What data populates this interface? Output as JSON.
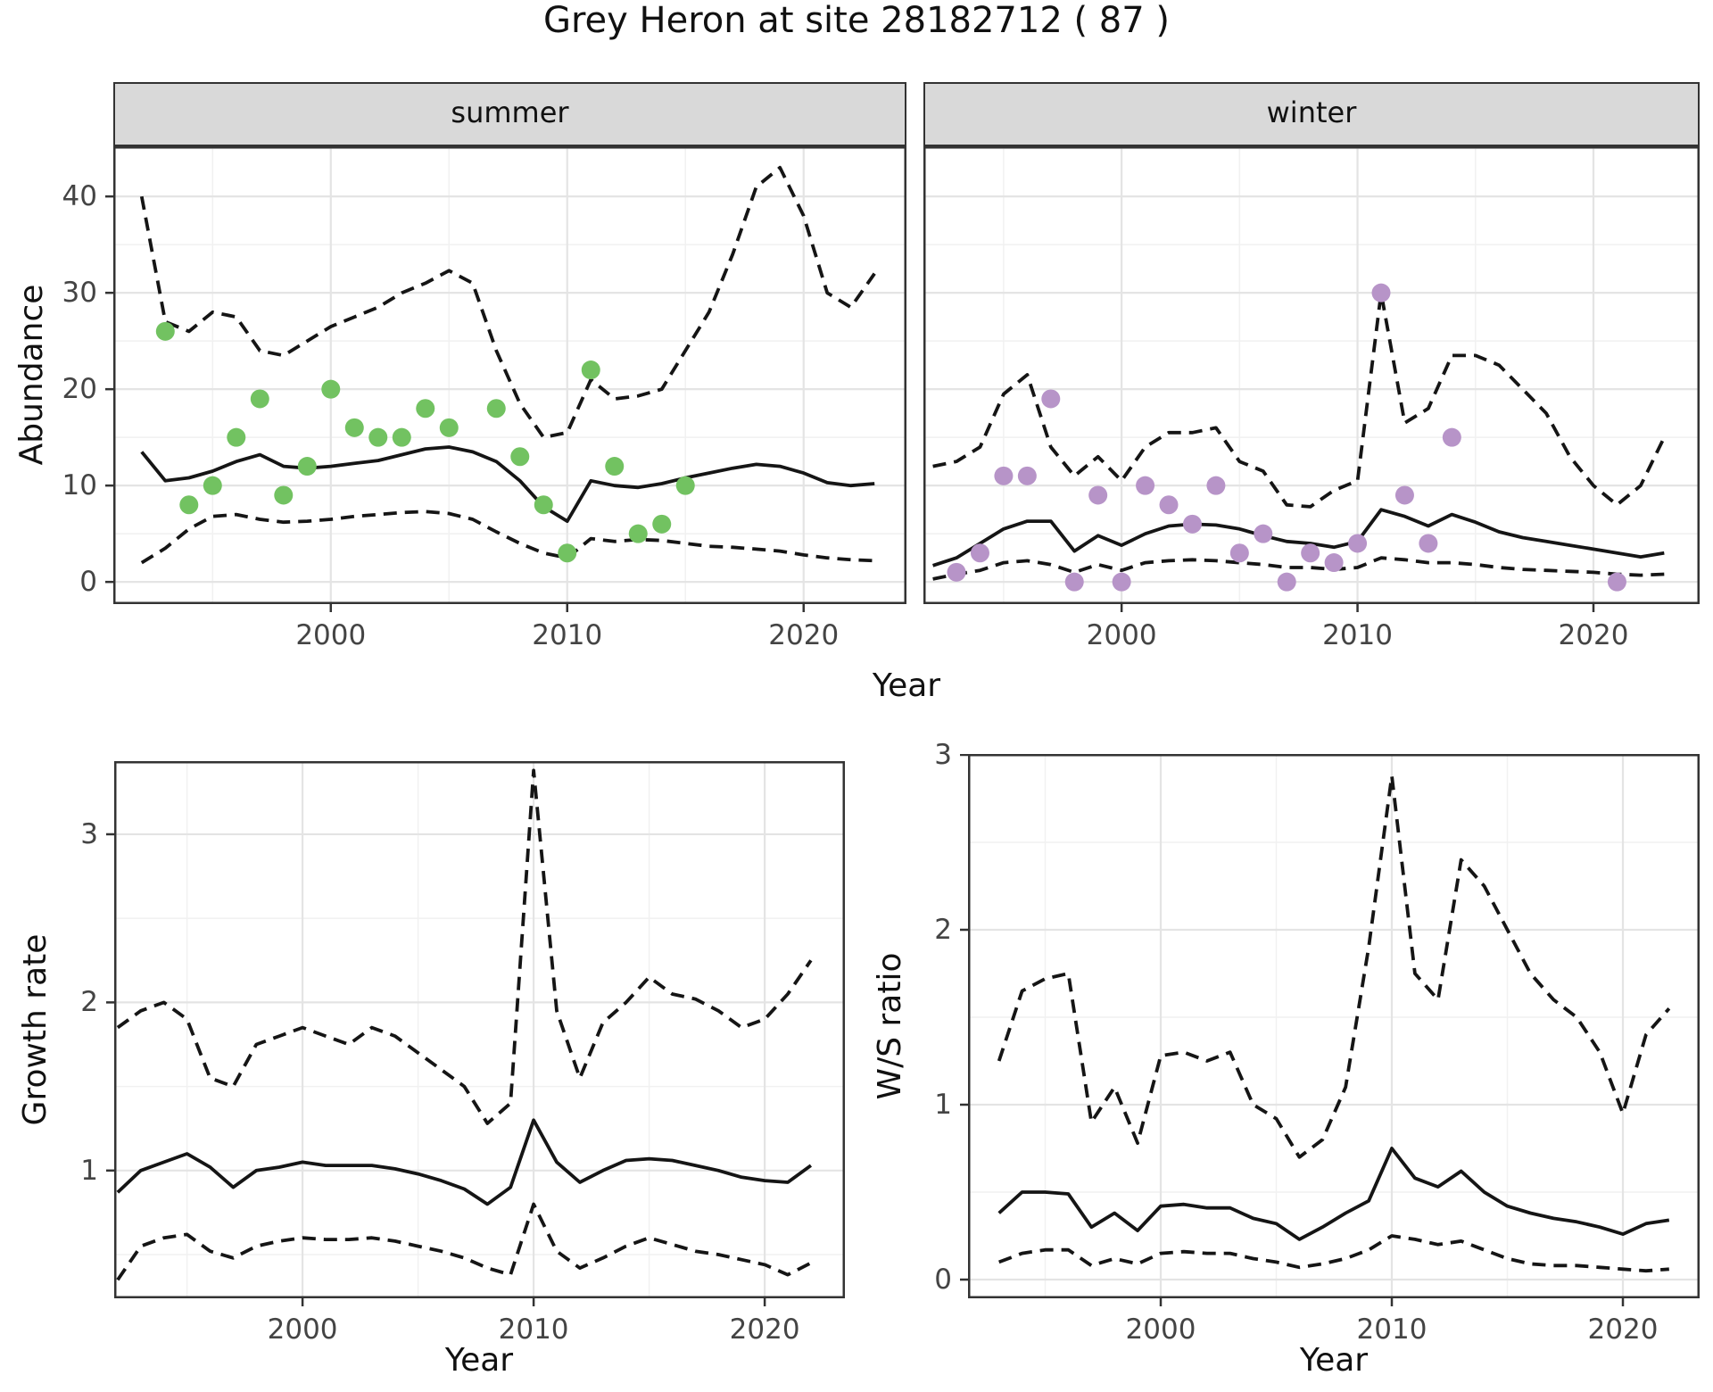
{
  "title": "Grey Heron at site 28182712 ( 87 )",
  "facets": {
    "summer": "summer",
    "winter": "winter"
  },
  "axis_labels": {
    "abundance": "Abundance",
    "year": "Year",
    "growth": "Growth rate",
    "ws": "W/S ratio"
  },
  "colors": {
    "summer_point": "#72c261",
    "winter_point": "#b794c8",
    "line": "#151515",
    "grid_major": "#e4e4e4",
    "grid_minor": "#f1f1f1",
    "strip_bg": "#d9d9d9",
    "axis_text": "#444444"
  },
  "chart_data": [
    {
      "id": "summer",
      "type": "line",
      "facet_label": "summer",
      "xlabel": "Year",
      "ylabel": "Abundance",
      "xlim": [
        1990.8,
        2024.35
      ],
      "ylim": [
        -2.3,
        45.2
      ],
      "xticks": [
        2000,
        2010,
        2020
      ],
      "xminor": [
        1995,
        2005,
        2015
      ],
      "yticks": [
        0,
        10,
        20,
        30,
        40
      ],
      "yminor": [
        5,
        15,
        25,
        35,
        45
      ],
      "x": [
        1992,
        1993,
        1994,
        1995,
        1996,
        1997,
        1998,
        1999,
        2000,
        2001,
        2002,
        2003,
        2004,
        2005,
        2006,
        2007,
        2008,
        2009,
        2010,
        2011,
        2012,
        2013,
        2014,
        2015,
        2016,
        2017,
        2018,
        2019,
        2020,
        2021,
        2022,
        2023
      ],
      "mean": [
        13.5,
        10.5,
        10.8,
        11.5,
        12.5,
        13.2,
        12,
        11.8,
        12,
        12.3,
        12.6,
        13.2,
        13.8,
        14,
        13.5,
        12.5,
        10.5,
        7.8,
        6.3,
        10.5,
        10,
        9.8,
        10.2,
        10.8,
        11.3,
        11.8,
        12.2,
        12,
        11.3,
        10.3,
        10,
        10.2
      ],
      "upper": [
        40,
        27,
        26,
        28,
        27.5,
        24,
        23.5,
        25,
        26.5,
        27.5,
        28.5,
        30,
        31,
        32.3,
        31,
        24,
        18.5,
        15,
        15.5,
        21,
        19,
        19.3,
        20,
        24,
        28,
        34,
        41,
        43,
        38,
        30,
        28.5,
        32
      ],
      "lower": [
        2,
        3.5,
        5.5,
        6.8,
        7,
        6.5,
        6.2,
        6.3,
        6.5,
        6.8,
        7,
        7.2,
        7.3,
        7.1,
        6.5,
        5.2,
        4,
        3,
        2.5,
        4.5,
        4.2,
        4.4,
        4.3,
        4,
        3.7,
        3.6,
        3.4,
        3.2,
        2.8,
        2.5,
        2.3,
        2.2
      ],
      "obs_x": [
        1993,
        1994,
        1995,
        1996,
        1997,
        1998,
        1999,
        2000,
        2001,
        2002,
        2003,
        2004,
        2005,
        2007,
        2008,
        2009,
        2010,
        2011,
        2012,
        2013,
        2014,
        2015
      ],
      "obs_y": [
        26,
        8,
        10,
        15,
        19,
        9,
        12,
        20,
        16,
        15,
        15,
        18,
        16,
        18,
        13,
        8,
        3,
        22,
        12,
        5,
        6,
        10
      ],
      "point_color": "#72c261"
    },
    {
      "id": "winter",
      "type": "line",
      "facet_label": "winter",
      "xlabel": "Year",
      "ylabel": "Abundance",
      "xlim": [
        1991.6,
        2024.5
      ],
      "ylim": [
        -2.3,
        45.2
      ],
      "xticks": [
        2000,
        2010,
        2020
      ],
      "xminor": [
        1995,
        2005,
        2015
      ],
      "yticks": [
        0,
        10,
        20,
        30,
        40
      ],
      "yminor": [
        5,
        15,
        25,
        35,
        45
      ],
      "x": [
        1992,
        1993,
        1994,
        1995,
        1996,
        1997,
        1998,
        1999,
        2000,
        2001,
        2002,
        2003,
        2004,
        2005,
        2006,
        2007,
        2008,
        2009,
        2010,
        2011,
        2012,
        2013,
        2014,
        2015,
        2016,
        2017,
        2018,
        2019,
        2020,
        2021,
        2022,
        2023
      ],
      "mean": [
        1.7,
        2.5,
        4,
        5.5,
        6.3,
        6.3,
        3.2,
        4.8,
        3.8,
        5,
        5.8,
        6,
        5.9,
        5.5,
        4.8,
        4.2,
        4,
        3.6,
        4.2,
        7.5,
        6.8,
        5.8,
        7,
        6.2,
        5.2,
        4.6,
        4.2,
        3.8,
        3.4,
        3,
        2.6,
        3
      ],
      "upper": [
        12,
        12.5,
        14,
        19.5,
        21.5,
        14,
        11,
        13,
        10.5,
        14,
        15.5,
        15.5,
        16,
        12.5,
        11.5,
        8,
        7.8,
        9.5,
        10.5,
        30,
        16.5,
        18,
        23.5,
        23.5,
        22.5,
        20,
        17.5,
        13,
        10,
        8,
        10,
        15
      ],
      "lower": [
        0.3,
        0.8,
        1.2,
        2,
        2.2,
        1.8,
        1,
        1.8,
        1.2,
        2,
        2.2,
        2.3,
        2.2,
        2,
        1.8,
        1.5,
        1.5,
        1.3,
        1.5,
        2.5,
        2.3,
        2,
        2,
        1.8,
        1.5,
        1.3,
        1.2,
        1.1,
        1,
        0.8,
        0.7,
        0.8
      ],
      "obs_x": [
        1993,
        1994,
        1995,
        1996,
        1997,
        1998,
        1999,
        2000,
        2001,
        2002,
        2003,
        2004,
        2005,
        2006,
        2007,
        2008,
        2009,
        2010,
        2011,
        2012,
        2013,
        2014,
        2021
      ],
      "obs_y": [
        1,
        3,
        11,
        11,
        19,
        0,
        9,
        0,
        10,
        8,
        6,
        10,
        3,
        5,
        0,
        3,
        2,
        4,
        30,
        9,
        4,
        15,
        0
      ],
      "point_color": "#b794c8"
    },
    {
      "id": "growth",
      "type": "line",
      "facet_label": "",
      "xlabel": "Year",
      "ylabel": "Growth rate",
      "xlim": [
        1991.85,
        2023.47
      ],
      "ylim": [
        0.24,
        3.435
      ],
      "xticks": [
        2000,
        2010,
        2020
      ],
      "xminor": [
        1995,
        2005,
        2015
      ],
      "yticks": [
        1,
        2,
        3
      ],
      "yminor": [
        0.5,
        1.5,
        2.5
      ],
      "x": [
        1992,
        1993,
        1994,
        1995,
        1996,
        1997,
        1998,
        1999,
        2000,
        2001,
        2002,
        2003,
        2004,
        2005,
        2006,
        2007,
        2008,
        2009,
        2010,
        2011,
        2012,
        2013,
        2014,
        2015,
        2016,
        2017,
        2018,
        2019,
        2020,
        2021,
        2022
      ],
      "mean": [
        0.87,
        1.0,
        1.05,
        1.1,
        1.02,
        0.9,
        1.0,
        1.02,
        1.05,
        1.03,
        1.03,
        1.03,
        1.01,
        0.98,
        0.94,
        0.89,
        0.8,
        0.9,
        1.3,
        1.05,
        0.93,
        1.0,
        1.06,
        1.07,
        1.06,
        1.03,
        1.0,
        0.96,
        0.94,
        0.93,
        1.03
      ],
      "upper": [
        1.85,
        1.95,
        2.0,
        1.9,
        1.55,
        1.5,
        1.75,
        1.8,
        1.85,
        1.8,
        1.75,
        1.85,
        1.8,
        1.7,
        1.6,
        1.5,
        1.28,
        1.4,
        3.38,
        1.95,
        1.55,
        1.88,
        2.0,
        2.15,
        2.05,
        2.02,
        1.95,
        1.85,
        1.9,
        2.05,
        2.25
      ],
      "lower": [
        0.35,
        0.55,
        0.6,
        0.62,
        0.52,
        0.48,
        0.55,
        0.58,
        0.6,
        0.59,
        0.59,
        0.6,
        0.58,
        0.55,
        0.52,
        0.48,
        0.42,
        0.38,
        0.8,
        0.52,
        0.42,
        0.48,
        0.55,
        0.6,
        0.56,
        0.52,
        0.5,
        0.47,
        0.44,
        0.38,
        0.45
      ],
      "obs_x": [],
      "obs_y": [],
      "point_color": "#000000"
    },
    {
      "id": "ws",
      "type": "line",
      "facet_label": "",
      "xlabel": "Year",
      "ylabel": "W/S ratio",
      "xlim": [
        1991.66,
        2023.32
      ],
      "ylim": [
        -0.107,
        3.005
      ],
      "xticks": [
        2000,
        2010,
        2020
      ],
      "xminor": [
        1995,
        2005,
        2015
      ],
      "yticks": [
        0,
        1,
        2,
        3
      ],
      "yminor": [
        0.5,
        1.5,
        2.5
      ],
      "x": [
        1993,
        1994,
        1995,
        1996,
        1997,
        1998,
        1999,
        2000,
        2001,
        2002,
        2003,
        2004,
        2005,
        2006,
        2007,
        2008,
        2009,
        2010,
        2011,
        2012,
        2013,
        2014,
        2015,
        2016,
        2017,
        2018,
        2019,
        2020,
        2021,
        2022
      ],
      "mean": [
        0.38,
        0.5,
        0.5,
        0.49,
        0.3,
        0.38,
        0.28,
        0.42,
        0.43,
        0.41,
        0.41,
        0.35,
        0.32,
        0.23,
        0.3,
        0.38,
        0.45,
        0.75,
        0.58,
        0.53,
        0.62,
        0.5,
        0.42,
        0.38,
        0.35,
        0.33,
        0.3,
        0.26,
        0.32,
        0.34
      ],
      "upper": [
        1.25,
        1.65,
        1.72,
        1.75,
        0.9,
        1.1,
        0.78,
        1.28,
        1.3,
        1.25,
        1.3,
        1.0,
        0.92,
        0.7,
        0.8,
        1.1,
        1.9,
        2.88,
        1.75,
        1.6,
        2.4,
        2.25,
        2.0,
        1.75,
        1.6,
        1.5,
        1.3,
        0.95,
        1.4,
        1.55
      ],
      "lower": [
        0.1,
        0.15,
        0.17,
        0.17,
        0.08,
        0.12,
        0.09,
        0.15,
        0.16,
        0.15,
        0.15,
        0.12,
        0.1,
        0.07,
        0.09,
        0.12,
        0.17,
        0.25,
        0.23,
        0.2,
        0.22,
        0.17,
        0.12,
        0.09,
        0.08,
        0.08,
        0.07,
        0.06,
        0.05,
        0.06
      ],
      "obs_x": [],
      "obs_y": [],
      "point_color": "#000000"
    }
  ]
}
